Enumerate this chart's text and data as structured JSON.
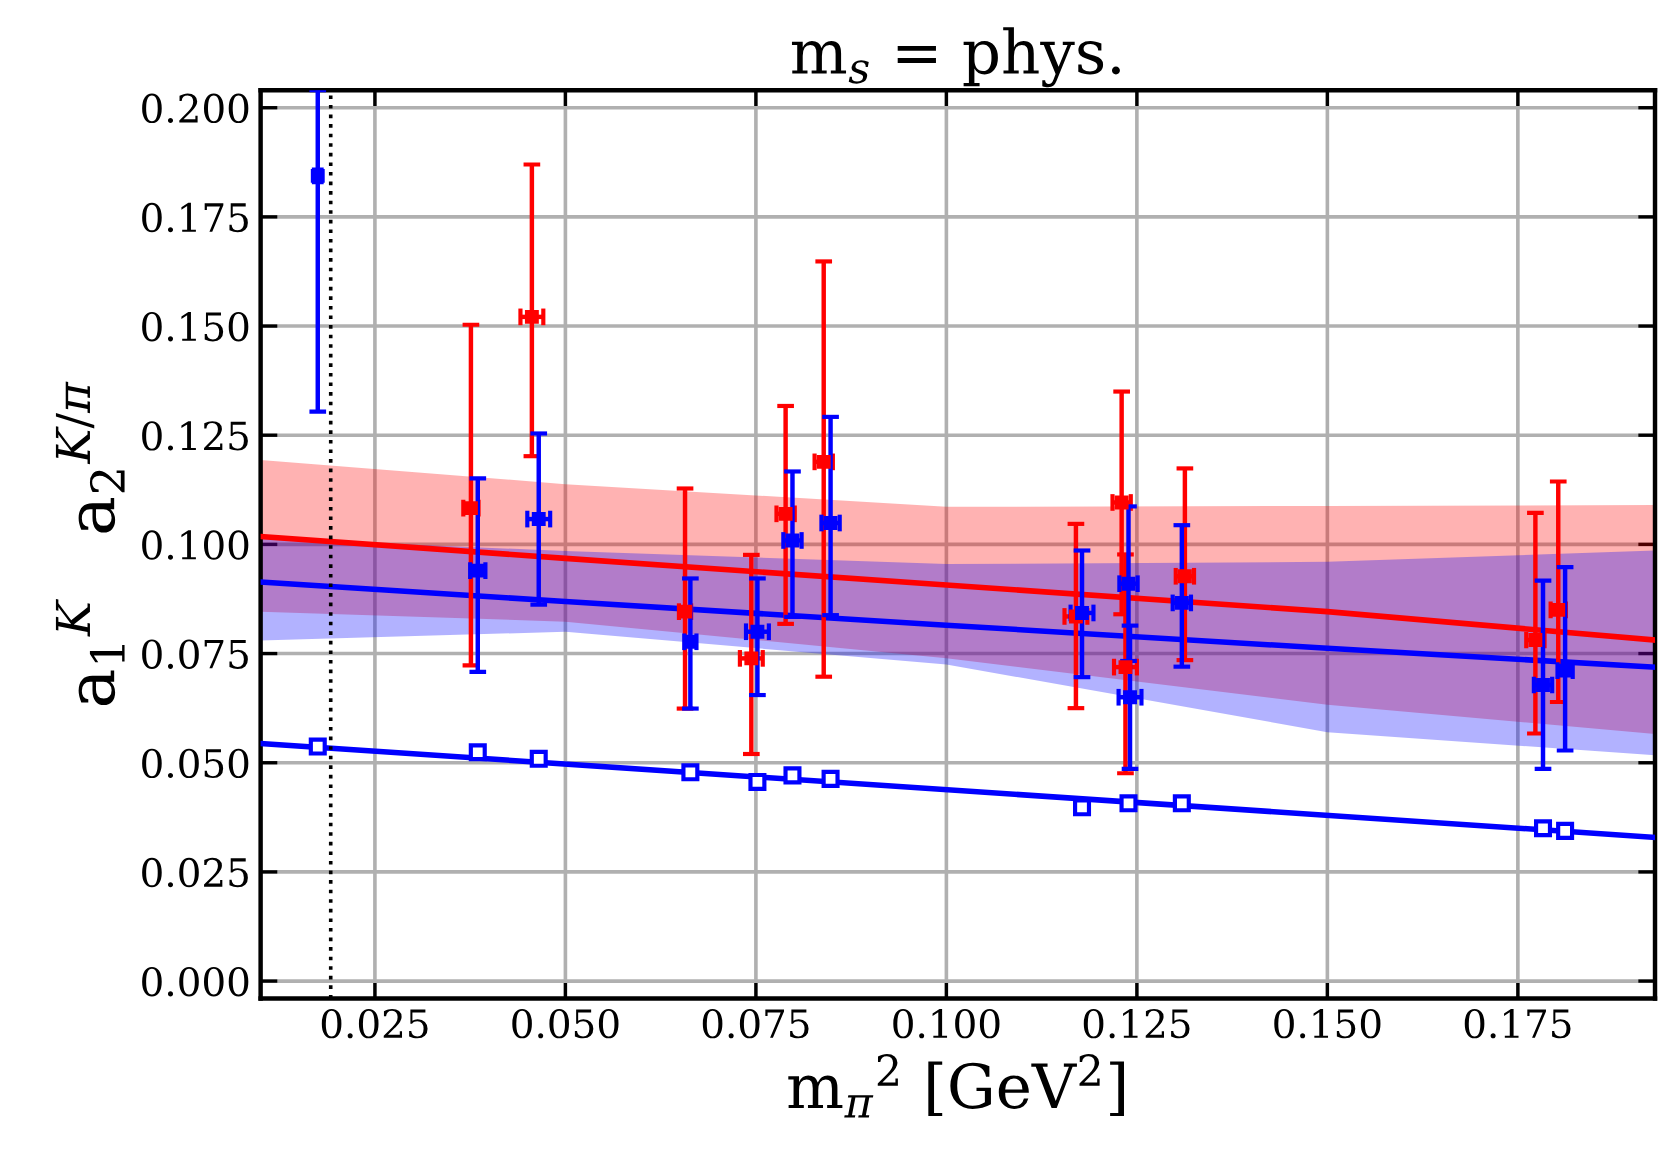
{
  "chart_data": {
    "type": "scatter",
    "title": "m$_{s}$ = phys.",
    "xlabel": "m$_{π}$$^{2}$ [GeV$^{2}$]",
    "ylabel": "a$_{1}$$^{K}$   a$_{2}$$^{K/π}$",
    "xlim": [
      0.01,
      0.193
    ],
    "ylim": [
      -0.004,
      0.204
    ],
    "xticks": [
      {
        "value": 0.025,
        "label": "0.025"
      },
      {
        "value": 0.05,
        "label": "0.050"
      },
      {
        "value": 0.075,
        "label": "0.075"
      },
      {
        "value": 0.1,
        "label": "0.100"
      },
      {
        "value": 0.125,
        "label": "0.125"
      },
      {
        "value": 0.15,
        "label": "0.150"
      },
      {
        "value": 0.175,
        "label": "0.175"
      }
    ],
    "yticks": [
      {
        "value": 0,
        "label": "0.000"
      },
      {
        "value": 0.025,
        "label": "0.025"
      },
      {
        "value": 0.05,
        "label": "0.050"
      },
      {
        "value": 0.075,
        "label": "0.075"
      },
      {
        "value": 0.1,
        "label": "0.100"
      },
      {
        "value": 0.125,
        "label": "0.125"
      },
      {
        "value": 0.15,
        "label": "0.150"
      },
      {
        "value": 0.175,
        "label": "0.175"
      },
      {
        "value": 0.2,
        "label": "0.200"
      }
    ],
    "grid": true,
    "ref_lines": [
      {
        "axis": "x",
        "value": 0.0192,
        "color": "#000000",
        "line_style": "dotted"
      }
    ],
    "series": [
      {
        "type": "line",
        "color": "#ff0000",
        "x": [
          0.01,
          0.05,
          0.1,
          0.15,
          0.193
        ],
        "values": [
          0.1018,
          0.0968,
          0.0907,
          0.0846,
          0.0781
        ],
        "lower": [
          0.0846,
          0.0823,
          0.0739,
          0.0633,
          0.0566
        ],
        "upper": [
          0.1193,
          0.1138,
          0.1086,
          0.1088,
          0.109
        ]
      },
      {
        "type": "line",
        "color": "#0000ff",
        "x": [
          0.01,
          0.05,
          0.1,
          0.15,
          0.193
        ],
        "values": [
          0.0914,
          0.0869,
          0.0815,
          0.0762,
          0.0719
        ],
        "lower": [
          0.078,
          0.08,
          0.0725,
          0.057,
          0.0517
        ],
        "upper": [
          0.1014,
          0.0985,
          0.0955,
          0.096,
          0.0986
        ]
      },
      {
        "type": "line",
        "color": "#0000ff",
        "x": [
          0.01,
          0.193
        ],
        "values": [
          0.0544,
          0.0329
        ]
      },
      {
        "marker": "square",
        "color": "#ff0000",
        "x": [
          0.0376,
          0.0456,
          0.0657,
          0.0744,
          0.0789,
          0.0839,
          0.117,
          0.123,
          0.1235,
          0.1313,
          0.1773,
          0.1803
        ],
        "values": [
          0.1083,
          0.1521,
          0.0846,
          0.0739,
          0.107,
          0.1189,
          0.0835,
          0.1096,
          0.0719,
          0.0927,
          0.0781,
          0.085
        ],
        "errors": [
          [
            0.0723,
            0.1503
          ],
          [
            0.1202,
            0.187
          ],
          [
            0.0624,
            0.1128
          ],
          [
            0.052,
            0.0976
          ],
          [
            0.0818,
            0.1317
          ],
          [
            0.0697,
            0.1648
          ],
          [
            0.0625,
            0.1047
          ],
          [
            0.084,
            0.135
          ],
          [
            0.0476,
            0.0977
          ],
          [
            0.0735,
            0.1174
          ],
          [
            0.0567,
            0.1072
          ],
          [
            0.0639,
            0.1144
          ]
        ],
        "xerrors": [
          0.001,
          0.0015,
          0.0008,
          0.0015,
          0.0012,
          0.0012,
          0.0015,
          0.0012,
          0.0015,
          0.0012,
          0.0012,
          0.001
        ]
      },
      {
        "marker": "square",
        "color": "#0000ff",
        "x": [
          0.0175,
          0.0385,
          0.0465,
          0.0664,
          0.0752,
          0.0798,
          0.0848,
          0.1178,
          0.1239,
          0.1241,
          0.1309,
          0.1783,
          0.1812
        ],
        "values": [
          0.1844,
          0.094,
          0.1058,
          0.0777,
          0.08,
          0.1009,
          0.1049,
          0.0843,
          0.091,
          0.065,
          0.0866,
          0.0678,
          0.0711
        ],
        "errors": [
          [
            0.1304,
            0.204
          ],
          [
            0.0708,
            0.1151
          ],
          [
            0.0862,
            0.1254
          ],
          [
            0.0624,
            0.0922
          ],
          [
            0.0655,
            0.0922
          ],
          [
            0.0834,
            0.1167
          ],
          [
            0.0838,
            0.1292
          ],
          [
            0.0696,
            0.0986
          ],
          [
            0.0733,
            0.1087
          ],
          [
            0.0486,
            0.0814
          ],
          [
            0.072,
            0.1044
          ],
          [
            0.0486,
            0.0917
          ],
          [
            0.0528,
            0.0948
          ]
        ],
        "xerrors": [
          0.0005,
          0.001,
          0.0015,
          0.0008,
          0.0015,
          0.0012,
          0.0012,
          0.0015,
          0.0012,
          0.0015,
          0.0012,
          0.0012,
          0.001
        ]
      },
      {
        "marker": "square",
        "color": "#0000ff",
        "x": [
          0.0175,
          0.0385,
          0.0465,
          0.0664,
          0.0752,
          0.0798,
          0.0848,
          0.1178,
          0.1239,
          0.1309,
          0.1783,
          0.1812
        ],
        "values": [
          0.0537,
          0.0524,
          0.0509,
          0.0478,
          0.0456,
          0.0471,
          0.0463,
          0.0398,
          0.0407,
          0.0407,
          0.035,
          0.0344
        ]
      }
    ]
  }
}
